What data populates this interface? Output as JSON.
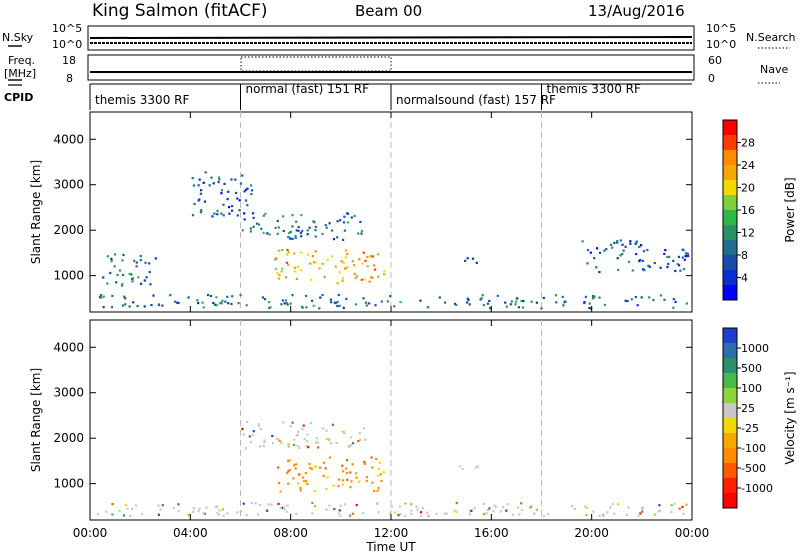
{
  "header": {
    "station": "King Salmon (fitACF)",
    "beam": "Beam 00",
    "date": "13/Aug/2016"
  },
  "strip_nsky": {
    "left_label": "N.Sky",
    "right_label": "N.Search",
    "left_ticks": [
      "10^5",
      "10^0"
    ],
    "right_ticks": [
      "10^5",
      "10^0"
    ]
  },
  "strip_freq": {
    "left_label_line1": "Freq.",
    "left_label_line2": "[MHz]",
    "right_label": "Nave",
    "left_ticks": [
      "18",
      "8"
    ],
    "right_ticks": [
      "60",
      "0"
    ]
  },
  "cpid": {
    "label": "CPID",
    "segments": [
      {
        "name": "themis 3300 RF",
        "start": 0,
        "end": 6
      },
      {
        "name": "normal (fast) 151 RF",
        "start": 6,
        "end": 12
      },
      {
        "name": "normalsound (fast) 157 RF",
        "start": 12,
        "end": 18
      },
      {
        "name": "themis 3300 RF",
        "start": 18,
        "end": 24
      }
    ]
  },
  "x_axis": {
    "label": "Time UT",
    "ticks": [
      "00:00",
      "04:00",
      "08:00",
      "12:00",
      "16:00",
      "20:00",
      "00:00"
    ],
    "tick_hours": [
      0,
      4,
      8,
      12,
      16,
      20,
      24
    ],
    "range": [
      0,
      24
    ]
  },
  "chart_data": [
    {
      "type": "heatmap",
      "quantity": "power",
      "ylabel": "Slant Range [km]",
      "yticks": [
        1000,
        2000,
        3000,
        4000
      ],
      "ylim": [
        200,
        4600
      ],
      "xlim": [
        0,
        24
      ],
      "colorbar": {
        "label": "Power [dB]",
        "ticks": [
          "28",
          "24",
          "20",
          "16",
          "12",
          "8",
          "4"
        ],
        "colors": [
          "#ff0000",
          "#ff3c00",
          "#ff8c00",
          "#f5a800",
          "#f5d800",
          "#7fcf3c",
          "#2eb84a",
          "#2f8f6a",
          "#1f6e8f",
          "#1a4da8",
          "#0a2fd0",
          "#0000ff"
        ]
      },
      "features": [
        {
          "name": "near-range ground scatter",
          "x": [
            0.2,
            23.8
          ],
          "y": [
            300,
            600
          ],
          "value": 8
        },
        {
          "name": "strong echo band",
          "x": [
            7.3,
            11.7
          ],
          "y": [
            850,
            1600
          ],
          "value": 20
        },
        {
          "name": "upper echo band",
          "x": [
            6.0,
            11.0
          ],
          "y": [
            1800,
            2400
          ],
          "value": 7
        },
        {
          "name": "scattered echoes 04-06 UT",
          "x": [
            4.0,
            6.5
          ],
          "y": [
            2300,
            3300
          ],
          "value": 6
        },
        {
          "name": "echo patch 15 UT",
          "x": [
            14.6,
            15.5
          ],
          "y": [
            1250,
            1450
          ],
          "value": 7
        },
        {
          "name": "echoes 00-02 UT",
          "x": [
            0.4,
            2.7
          ],
          "y": [
            800,
            1500
          ],
          "value": 7
        },
        {
          "name": "echoes 20-24 UT",
          "x": [
            19.5,
            23.9
          ],
          "y": [
            1100,
            1800
          ],
          "value": 6
        }
      ]
    },
    {
      "type": "heatmap",
      "quantity": "velocity",
      "ylabel": "Slant Range [km]",
      "yticks": [
        1000,
        2000,
        3000,
        4000
      ],
      "ylim": [
        200,
        4600
      ],
      "xlim": [
        0,
        24
      ],
      "colorbar": {
        "label": "Velocity [m s⁻¹]",
        "ticks": [
          "1000",
          "500",
          "100",
          "25",
          "-25",
          "-100",
          "-500",
          "-1000"
        ],
        "colors": [
          "#1e3fcc",
          "#2a6fae",
          "#2f8f6a",
          "#48b94a",
          "#8fd43a",
          "#c8c8c8",
          "#f5d800",
          "#f5a800",
          "#ff8c00",
          "#ff5a00",
          "#ff2000",
          "#ff0000"
        ]
      },
      "features": [
        {
          "name": "near-range ground scatter",
          "x": [
            0.2,
            23.8
          ],
          "y": [
            300,
            600
          ],
          "value": 0
        },
        {
          "name": "strong echo band",
          "x": [
            7.3,
            11.7
          ],
          "y": [
            850,
            1600
          ],
          "value": -300
        },
        {
          "name": "upper echo band",
          "x": [
            6.0,
            11.0
          ],
          "y": [
            1800,
            2400
          ],
          "value": 0
        },
        {
          "name": "echo patch 15 UT",
          "x": [
            14.6,
            15.5
          ],
          "y": [
            1250,
            1450
          ],
          "value": 0
        }
      ]
    }
  ]
}
